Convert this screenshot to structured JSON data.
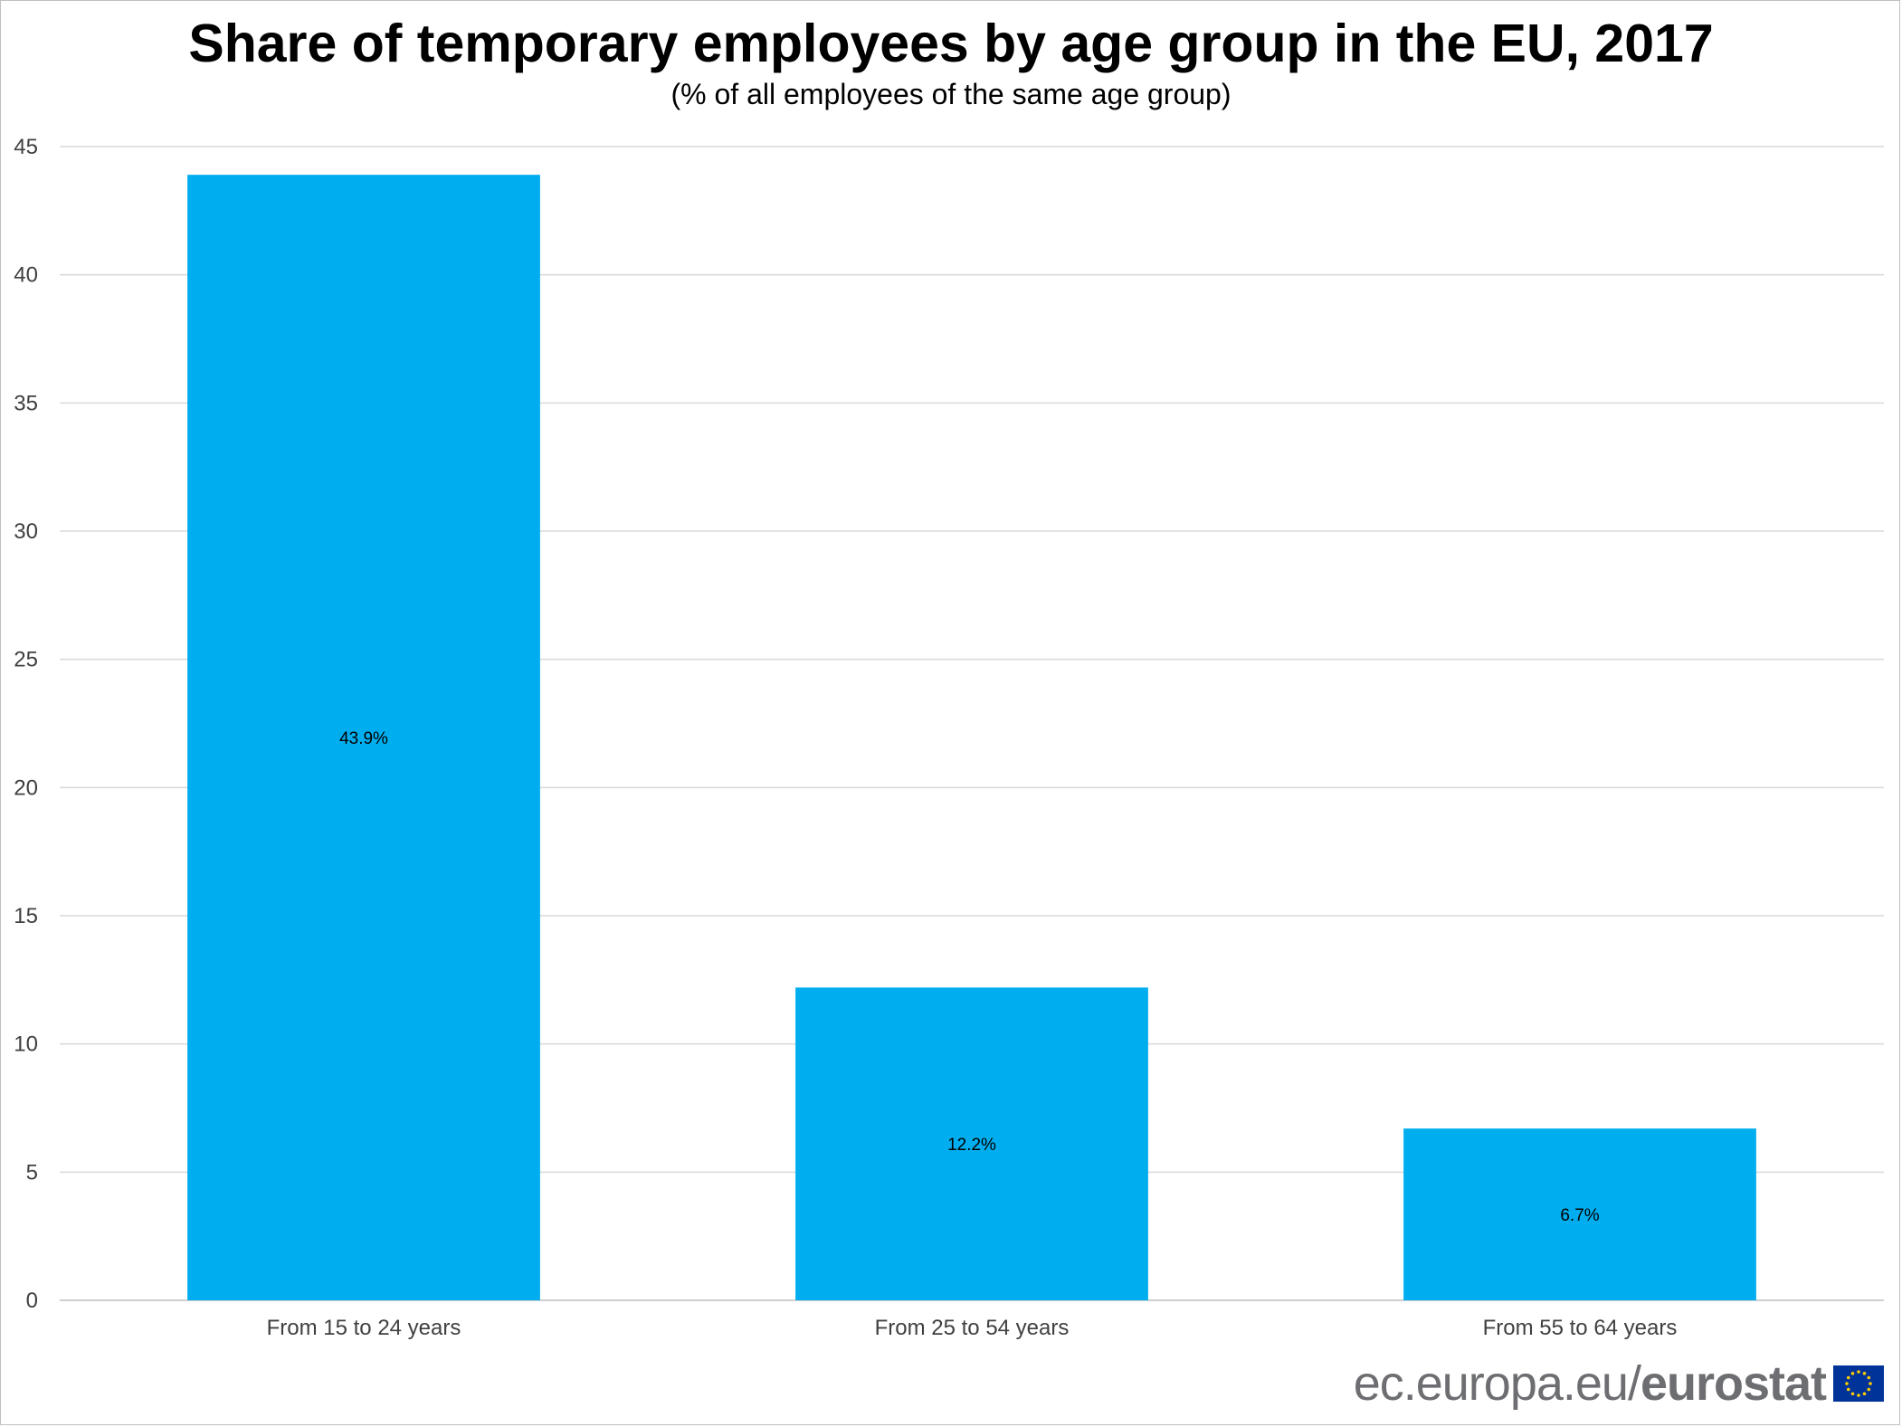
{
  "chart_data": {
    "type": "bar",
    "title": "Share of temporary employees by age group in the EU, 2017",
    "subtitle": "(% of all employees of the same age group)",
    "categories": [
      "From 15 to 24 years",
      "From 25 to 54 years",
      "From 55 to 64 years"
    ],
    "values": [
      43.9,
      12.2,
      6.7
    ],
    "data_labels": [
      "43.9%",
      "12.2%",
      "6.7%"
    ],
    "xlabel": "",
    "ylabel": "",
    "ylim": [
      0,
      45
    ],
    "yticks": [
      0,
      5,
      10,
      15,
      20,
      25,
      30,
      35,
      40,
      45
    ],
    "grid": true,
    "legend": "none",
    "bar_color": "#00AEEF"
  },
  "footer": {
    "url": "ec.europa.eu/",
    "brand": "eurostat",
    "flag_icon": "eu-flag-icon",
    "flag_color": "#003399",
    "star_color": "#FFCC00"
  }
}
